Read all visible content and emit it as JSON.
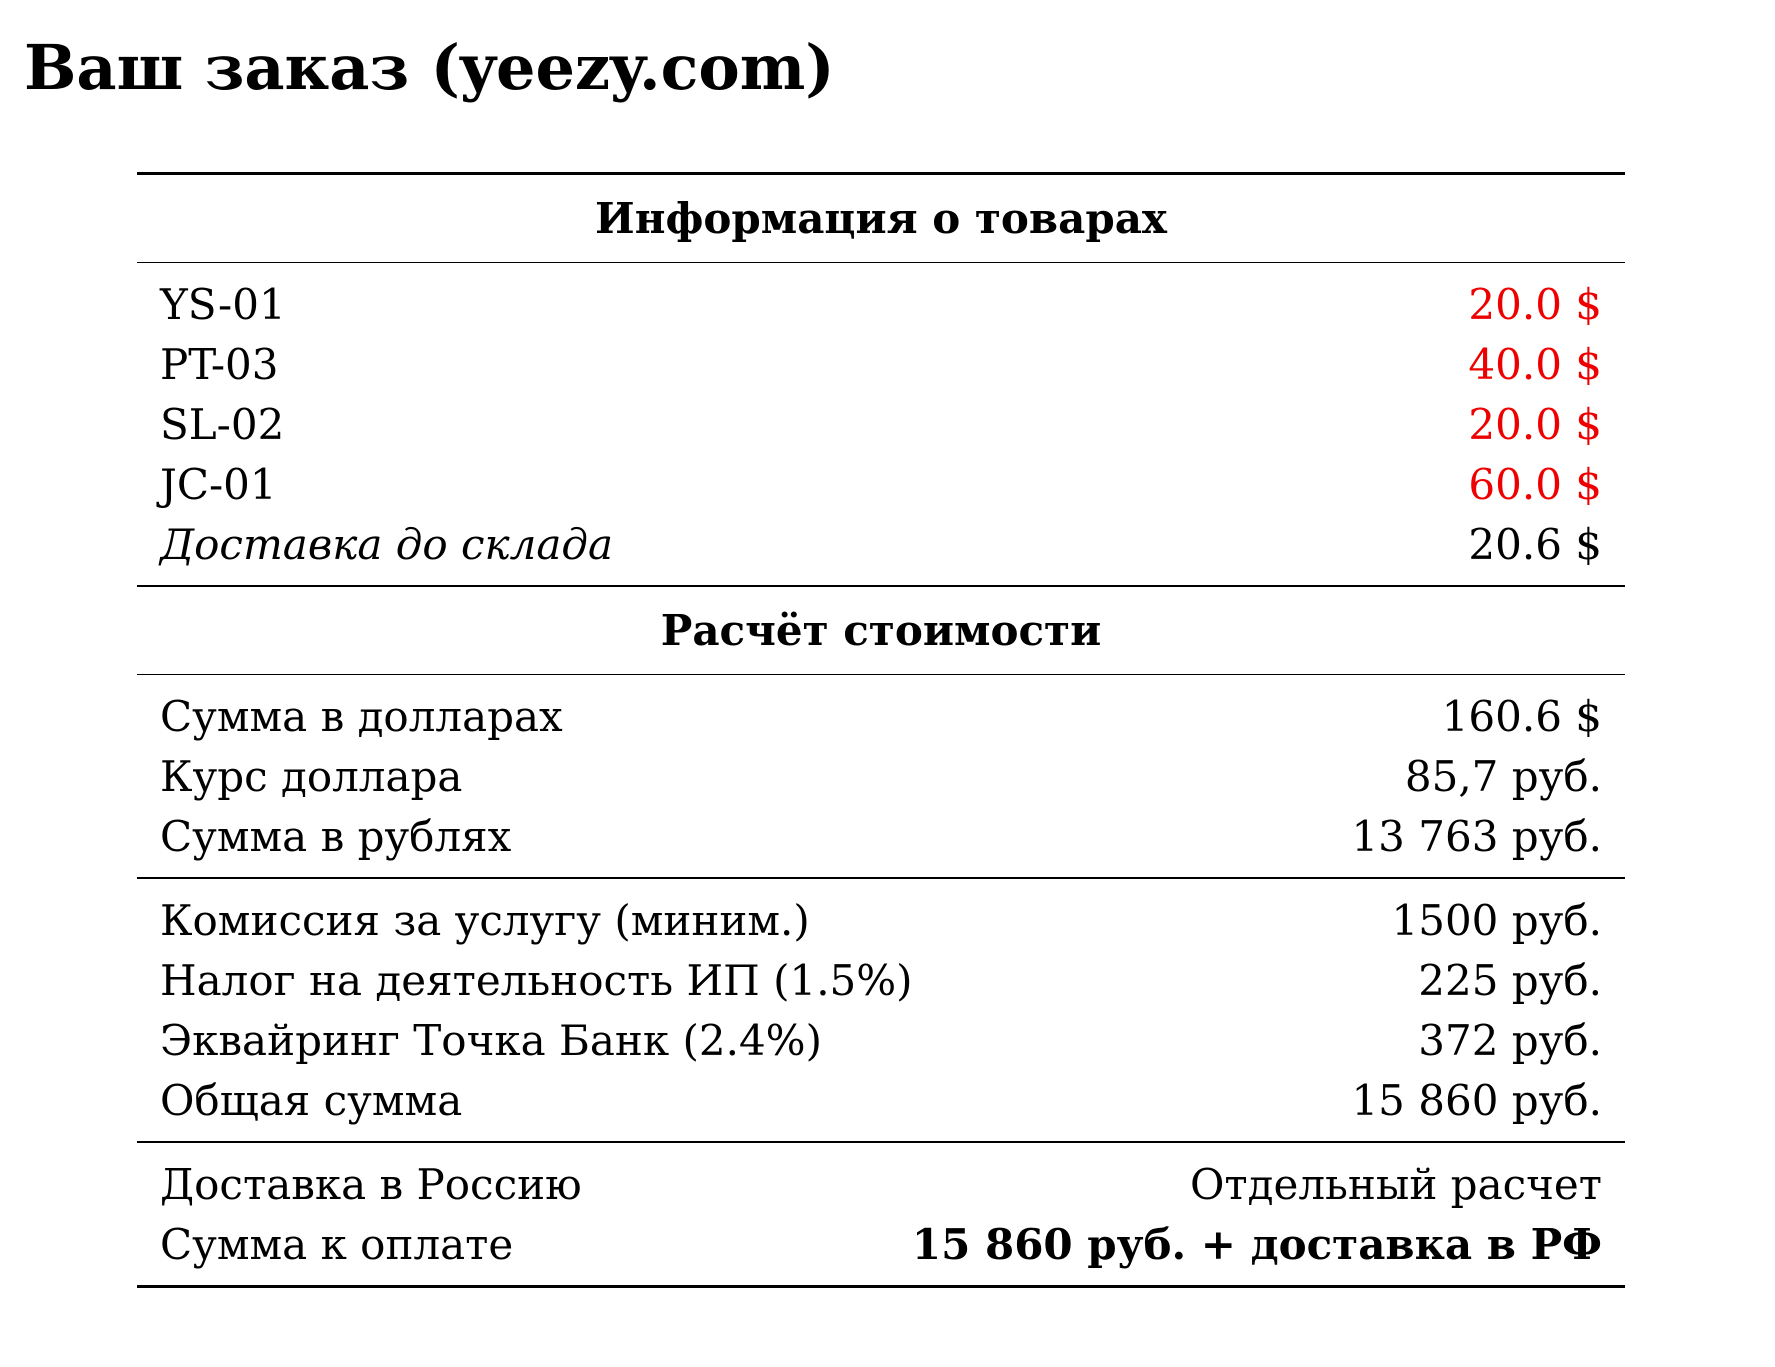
{
  "title": "Ваш заказ (yeezy.com)",
  "table": {
    "goods": {
      "heading": "Информация о товарах",
      "rows": [
        [
          "YS-01",
          "20.0 $"
        ],
        [
          "PT-03",
          "40.0 $"
        ],
        [
          "SL-02",
          "20.0 $"
        ],
        [
          "JC-01",
          "60.0 $"
        ],
        [
          "Доставка до склада",
          "20.6 $"
        ]
      ]
    },
    "calc": {
      "heading": "Расчёт стоимости",
      "rows": [
        [
          "Сумма в долларах",
          "160.6 $"
        ],
        [
          "Курс доллара",
          "85,7 руб."
        ],
        [
          "Сумма в рублях",
          "13 763 руб."
        ]
      ]
    },
    "fees": {
      "rows": [
        [
          "Комиссия за услугу (миним.)",
          "1500 руб."
        ],
        [
          "Налог на деятельность ИП (1.5%)",
          "225 руб."
        ],
        [
          "Эквайринг Точка Банк (2.4%)",
          "372 руб."
        ],
        [
          "Общая сумма",
          "15 860 руб."
        ]
      ]
    },
    "total": {
      "rows": [
        [
          "Доставка в Россию",
          "Отдельный расчет"
        ],
        [
          "Сумма к оплате",
          "15 860 руб. + доставка в РФ"
        ]
      ]
    }
  }
}
